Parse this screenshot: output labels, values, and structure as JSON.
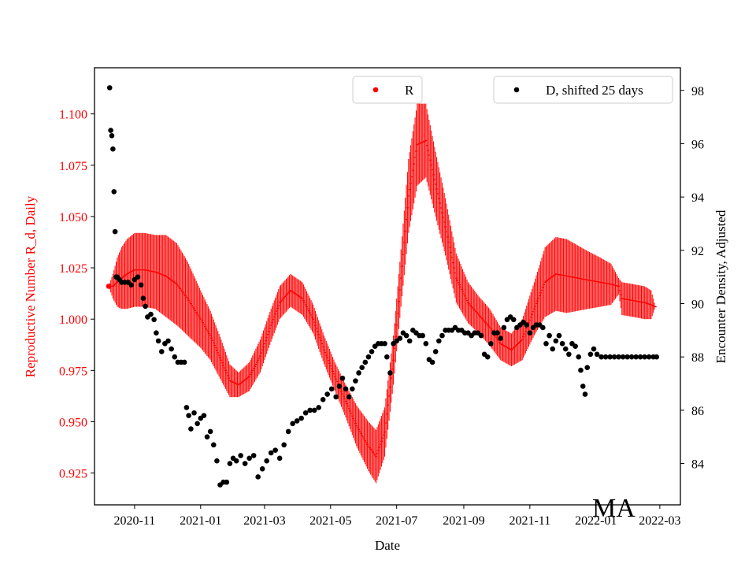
{
  "chart_data": {
    "type": "scatter",
    "xlabel": "Date",
    "y_left_label": "Reproductive Number R_d, Daily",
    "y_right_label": "Encounter Density, Adjusted",
    "watermark": "MA",
    "x_range": [
      "2020-09-25",
      "2022-03-20"
    ],
    "y_left_range": [
      0.9095,
      1.1225
    ],
    "y_right_range": [
      82.45,
      98.85
    ],
    "x_ticks": [
      "2020-11",
      "2021-01",
      "2021-03",
      "2021-05",
      "2021-07",
      "2021-09",
      "2021-11",
      "2022-01",
      "2022-03"
    ],
    "y_left_ticks": [
      "0.925",
      "0.950",
      "0.975",
      "1.000",
      "1.025",
      "1.050",
      "1.075",
      "1.100"
    ],
    "y_right_ticks": [
      "84",
      "86",
      "88",
      "90",
      "92",
      "94",
      "96",
      "98"
    ],
    "colors": {
      "R": "#ff0000",
      "D": "#000000"
    },
    "legend_left": {
      "label": "R",
      "placement": "top-center"
    },
    "legend_right": {
      "label": "D, shifted 25 days",
      "placement": "top-right"
    },
    "series": [
      {
        "name": "R",
        "error_bars": true,
        "points": [
          [
            "2020-10-08",
            1.016,
            0.0
          ],
          [
            "2020-10-12",
            1.016,
            0.006
          ],
          [
            "2020-10-16",
            1.018,
            0.012
          ],
          [
            "2020-10-20",
            1.02,
            0.015
          ],
          [
            "2020-10-25",
            1.022,
            0.017
          ],
          [
            "2020-11-01",
            1.024,
            0.018
          ],
          [
            "2020-11-10",
            1.024,
            0.018
          ],
          [
            "2020-11-20",
            1.023,
            0.018
          ],
          [
            "2020-11-30",
            1.021,
            0.02
          ],
          [
            "2020-12-10",
            1.017,
            0.02
          ],
          [
            "2020-12-20",
            1.01,
            0.018
          ],
          [
            "2021-01-01",
            1.0,
            0.014
          ],
          [
            "2021-01-10",
            0.992,
            0.012
          ],
          [
            "2021-01-20",
            0.98,
            0.01
          ],
          [
            "2021-01-28",
            0.97,
            0.008
          ],
          [
            "2021-02-05",
            0.968,
            0.006
          ],
          [
            "2021-02-15",
            0.972,
            0.007
          ],
          [
            "2021-02-25",
            0.982,
            0.008
          ],
          [
            "2021-03-07",
            0.997,
            0.008
          ],
          [
            "2021-03-15",
            1.008,
            0.008
          ],
          [
            "2021-03-25",
            1.014,
            0.008
          ],
          [
            "2021-04-05",
            1.01,
            0.008
          ],
          [
            "2021-04-15",
            1.0,
            0.007
          ],
          [
            "2021-04-25",
            0.985,
            0.007
          ],
          [
            "2021-05-05",
            0.972,
            0.007
          ],
          [
            "2021-05-15",
            0.96,
            0.008
          ],
          [
            "2021-05-25",
            0.948,
            0.01
          ],
          [
            "2021-06-05",
            0.938,
            0.012
          ],
          [
            "2021-06-12",
            0.933,
            0.013
          ],
          [
            "2021-06-20",
            0.945,
            0.012
          ],
          [
            "2021-06-28",
            0.98,
            0.012
          ],
          [
            "2021-07-05",
            1.02,
            0.014
          ],
          [
            "2021-07-12",
            1.06,
            0.018
          ],
          [
            "2021-07-20",
            1.085,
            0.02
          ],
          [
            "2021-07-28",
            1.087,
            0.018
          ],
          [
            "2021-08-05",
            1.068,
            0.016
          ],
          [
            "2021-08-15",
            1.045,
            0.014
          ],
          [
            "2021-08-25",
            1.02,
            0.012
          ],
          [
            "2021-09-05",
            1.008,
            0.01
          ],
          [
            "2021-09-15",
            1.002,
            0.009
          ],
          [
            "2021-09-25",
            0.996,
            0.009
          ],
          [
            "2021-10-05",
            0.988,
            0.008
          ],
          [
            "2021-10-15",
            0.985,
            0.008
          ],
          [
            "2021-10-25",
            0.99,
            0.01
          ],
          [
            "2021-11-05",
            1.005,
            0.013
          ],
          [
            "2021-11-15",
            1.018,
            0.017
          ],
          [
            "2021-11-25",
            1.022,
            0.018
          ],
          [
            "2021-12-05",
            1.021,
            0.018
          ],
          [
            "2021-12-15",
            1.02,
            0.016
          ],
          [
            "2021-12-25",
            1.019,
            0.014
          ],
          [
            "2022-01-05",
            1.018,
            0.012
          ],
          [
            "2022-01-15",
            1.017,
            0.01
          ],
          [
            "2022-01-22",
            1.016,
            0.004
          ],
          [
            "2022-01-25",
            1.01,
            0.008
          ],
          [
            "2022-02-05",
            1.009,
            0.008
          ],
          [
            "2022-02-15",
            1.008,
            0.008
          ],
          [
            "2022-02-21",
            1.007,
            0.007
          ],
          [
            "2022-02-25",
            1.006,
            0.0
          ]
        ]
      },
      {
        "name": "D, shifted 25 days",
        "points": [
          [
            "2020-10-09",
            98.1
          ],
          [
            "2020-10-10",
            96.5
          ],
          [
            "2020-10-11",
            96.3
          ],
          [
            "2020-10-12",
            95.8
          ],
          [
            "2020-10-13",
            94.2
          ],
          [
            "2020-10-14",
            92.7
          ],
          [
            "2020-10-15",
            91.0
          ],
          [
            "2020-10-16",
            91.0
          ],
          [
            "2020-10-18",
            90.9
          ],
          [
            "2020-10-20",
            90.8
          ],
          [
            "2020-10-23",
            90.8
          ],
          [
            "2020-10-26",
            90.8
          ],
          [
            "2020-10-29",
            90.7
          ],
          [
            "2020-11-01",
            90.9
          ],
          [
            "2020-11-04",
            91.0
          ],
          [
            "2020-11-07",
            90.7
          ],
          [
            "2020-11-09",
            90.2
          ],
          [
            "2020-11-11",
            89.9
          ],
          [
            "2020-11-13",
            89.5
          ],
          [
            "2020-11-16",
            89.6
          ],
          [
            "2020-11-19",
            89.4
          ],
          [
            "2020-11-21",
            88.9
          ],
          [
            "2020-11-23",
            88.6
          ],
          [
            "2020-11-26",
            88.2
          ],
          [
            "2020-11-29",
            88.5
          ],
          [
            "2020-12-02",
            88.6
          ],
          [
            "2020-12-05",
            88.3
          ],
          [
            "2020-12-08",
            88.0
          ],
          [
            "2020-12-11",
            87.8
          ],
          [
            "2020-12-14",
            87.8
          ],
          [
            "2020-12-17",
            87.8
          ],
          [
            "2020-12-19",
            86.1
          ],
          [
            "2020-12-21",
            85.8
          ],
          [
            "2020-12-23",
            85.3
          ],
          [
            "2020-12-26",
            85.9
          ],
          [
            "2020-12-29",
            85.5
          ],
          [
            "2021-01-01",
            85.7
          ],
          [
            "2021-01-04",
            85.8
          ],
          [
            "2021-01-07",
            85.0
          ],
          [
            "2021-01-10",
            85.2
          ],
          [
            "2021-01-13",
            84.7
          ],
          [
            "2021-01-16",
            84.1
          ],
          [
            "2021-01-19",
            83.2
          ],
          [
            "2021-01-22",
            83.3
          ],
          [
            "2021-01-25",
            83.3
          ],
          [
            "2021-01-28",
            84.0
          ],
          [
            "2021-01-31",
            84.2
          ],
          [
            "2021-02-03",
            84.1
          ],
          [
            "2021-02-07",
            84.3
          ],
          [
            "2021-02-11",
            84.0
          ],
          [
            "2021-02-15",
            84.2
          ],
          [
            "2021-02-19",
            84.3
          ],
          [
            "2021-02-23",
            83.5
          ],
          [
            "2021-02-27",
            83.8
          ],
          [
            "2021-03-03",
            84.1
          ],
          [
            "2021-03-07",
            84.4
          ],
          [
            "2021-03-11",
            84.5
          ],
          [
            "2021-03-15",
            84.2
          ],
          [
            "2021-03-19",
            84.7
          ],
          [
            "2021-03-23",
            85.2
          ],
          [
            "2021-03-27",
            85.5
          ],
          [
            "2021-03-31",
            85.6
          ],
          [
            "2021-04-04",
            85.7
          ],
          [
            "2021-04-08",
            85.9
          ],
          [
            "2021-04-12",
            86.0
          ],
          [
            "2021-04-16",
            86.0
          ],
          [
            "2021-04-20",
            86.1
          ],
          [
            "2021-04-24",
            86.4
          ],
          [
            "2021-04-28",
            86.6
          ],
          [
            "2021-05-02",
            86.8
          ],
          [
            "2021-05-06",
            86.5
          ],
          [
            "2021-05-09",
            86.9
          ],
          [
            "2021-05-12",
            87.2
          ],
          [
            "2021-05-15",
            86.8
          ],
          [
            "2021-05-18",
            86.5
          ],
          [
            "2021-05-21",
            86.8
          ],
          [
            "2021-05-24",
            87.1
          ],
          [
            "2021-05-27",
            87.4
          ],
          [
            "2021-05-30",
            87.6
          ],
          [
            "2021-06-02",
            87.8
          ],
          [
            "2021-06-05",
            88.0
          ],
          [
            "2021-06-08",
            88.2
          ],
          [
            "2021-06-11",
            88.4
          ],
          [
            "2021-06-14",
            88.5
          ],
          [
            "2021-06-17",
            88.5
          ],
          [
            "2021-06-20",
            88.5
          ],
          [
            "2021-06-22",
            88.0
          ],
          [
            "2021-06-25",
            87.4
          ],
          [
            "2021-06-28",
            88.5
          ],
          [
            "2021-07-01",
            88.6
          ],
          [
            "2021-07-04",
            88.7
          ],
          [
            "2021-07-07",
            88.9
          ],
          [
            "2021-07-10",
            88.8
          ],
          [
            "2021-07-13",
            88.6
          ],
          [
            "2021-07-16",
            89.0
          ],
          [
            "2021-07-19",
            88.9
          ],
          [
            "2021-07-22",
            88.8
          ],
          [
            "2021-07-25",
            88.8
          ],
          [
            "2021-07-28",
            88.5
          ],
          [
            "2021-07-31",
            87.9
          ],
          [
            "2021-08-03",
            87.8
          ],
          [
            "2021-08-06",
            88.2
          ],
          [
            "2021-08-09",
            88.6
          ],
          [
            "2021-08-12",
            88.8
          ],
          [
            "2021-08-15",
            89.0
          ],
          [
            "2021-08-18",
            89.0
          ],
          [
            "2021-08-21",
            89.0
          ],
          [
            "2021-08-24",
            89.1
          ],
          [
            "2021-08-27",
            89.0
          ],
          [
            "2021-08-30",
            89.0
          ],
          [
            "2021-09-02",
            88.9
          ],
          [
            "2021-09-05",
            88.9
          ],
          [
            "2021-09-08",
            88.8
          ],
          [
            "2021-09-11",
            88.9
          ],
          [
            "2021-09-14",
            88.9
          ],
          [
            "2021-09-17",
            88.8
          ],
          [
            "2021-09-20",
            88.1
          ],
          [
            "2021-09-23",
            88.0
          ],
          [
            "2021-09-26",
            88.5
          ],
          [
            "2021-09-29",
            88.9
          ],
          [
            "2021-10-02",
            88.9
          ],
          [
            "2021-10-05",
            88.7
          ],
          [
            "2021-10-08",
            89.1
          ],
          [
            "2021-10-11",
            89.4
          ],
          [
            "2021-10-14",
            89.5
          ],
          [
            "2021-10-17",
            89.4
          ],
          [
            "2021-10-20",
            89.1
          ],
          [
            "2021-10-23",
            89.2
          ],
          [
            "2021-10-26",
            89.3
          ],
          [
            "2021-10-29",
            89.2
          ],
          [
            "2021-11-01",
            88.9
          ],
          [
            "2021-11-04",
            89.1
          ],
          [
            "2021-11-07",
            89.2
          ],
          [
            "2021-11-10",
            89.2
          ],
          [
            "2021-11-13",
            89.1
          ],
          [
            "2021-11-16",
            88.5
          ],
          [
            "2021-11-19",
            88.8
          ],
          [
            "2021-11-22",
            88.3
          ],
          [
            "2021-11-25",
            88.6
          ],
          [
            "2021-11-28",
            88.8
          ],
          [
            "2021-12-01",
            88.5
          ],
          [
            "2021-12-04",
            88.3
          ],
          [
            "2021-12-07",
            88.1
          ],
          [
            "2021-12-10",
            88.5
          ],
          [
            "2021-12-13",
            88.4
          ],
          [
            "2021-12-16",
            88.0
          ],
          [
            "2021-12-18",
            87.5
          ],
          [
            "2021-12-20",
            86.9
          ],
          [
            "2021-12-22",
            86.6
          ],
          [
            "2021-12-24",
            87.6
          ],
          [
            "2021-12-27",
            88.1
          ],
          [
            "2021-12-30",
            88.3
          ],
          [
            "2022-01-02",
            88.1
          ],
          [
            "2022-01-06",
            88.0
          ],
          [
            "2022-01-10",
            88.0
          ],
          [
            "2022-01-14",
            88.0
          ],
          [
            "2022-01-18",
            88.0
          ],
          [
            "2022-01-22",
            88.0
          ],
          [
            "2022-01-26",
            88.0
          ],
          [
            "2022-01-30",
            88.0
          ],
          [
            "2022-02-03",
            88.0
          ],
          [
            "2022-02-07",
            88.0
          ],
          [
            "2022-02-11",
            88.0
          ],
          [
            "2022-02-15",
            88.0
          ],
          [
            "2022-02-19",
            88.0
          ],
          [
            "2022-02-23",
            88.0
          ],
          [
            "2022-02-26",
            88.0
          ]
        ]
      }
    ]
  }
}
